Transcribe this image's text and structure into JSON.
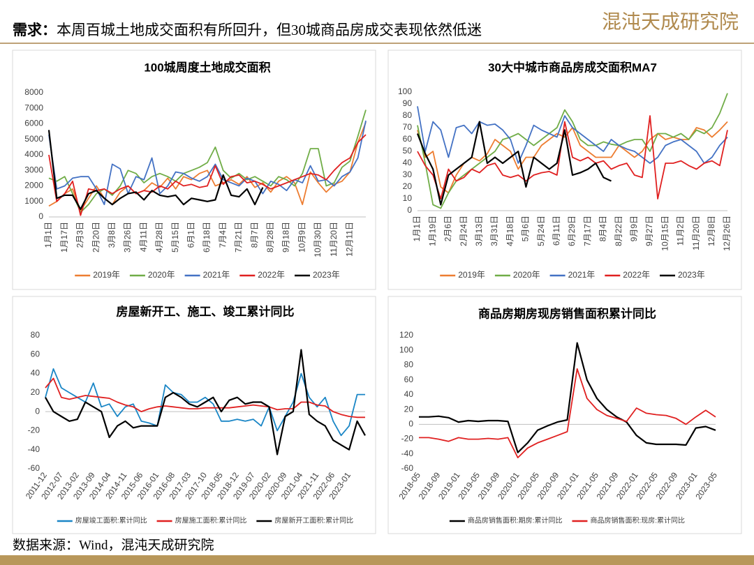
{
  "header": {
    "title_label": "需求：",
    "title": "本周百城土地成交面积有所回升，但30城商品房成交表现依然低迷",
    "logo": "混沌天成研究院"
  },
  "footer": {
    "source": "数据来源：Wind，混沌天成研究院"
  },
  "chart_data": [
    {
      "type": "line",
      "title": "100城周度土地成交面积",
      "legend": "bottom",
      "grid": false,
      "categories": [
        "1月1日",
        null,
        "1月17日",
        null,
        "2月3日",
        null,
        "2月20日",
        null,
        "3月8日",
        null,
        "3月26日",
        null,
        "4月11日",
        null,
        "4月28日",
        null,
        "5月15日",
        null,
        "6月1日",
        null,
        "6月18日",
        null,
        "7月4日",
        null,
        "7月21日",
        null,
        "8月7日",
        null,
        "8月28日",
        null,
        "9月18日",
        null,
        "10月9日",
        null,
        "10月30日",
        null,
        "11月20日",
        null,
        "12月11日",
        null,
        null
      ],
      "ylim": [
        0,
        8000
      ],
      "yticks": [
        0,
        1000,
        2000,
        3000,
        4000,
        5000,
        6000,
        7000,
        8000
      ],
      "series": [
        {
          "name": "2019年",
          "color": "#ED7D31",
          "values": [
            700,
            1000,
            1500,
            1800,
            400,
            1200,
            2000,
            1200,
            800,
            1600,
            2000,
            1500,
            1700,
            2200,
            1900,
            2500,
            1800,
            2600,
            2400,
            2800,
            3000,
            2000,
            2200,
            2400,
            2100,
            2600,
            1900,
            2200,
            1600,
            2300,
            2600,
            2200,
            800,
            2900,
            2200,
            1600,
            2100,
            2300,
            2900,
            4800,
            6100
          ]
        },
        {
          "name": "2020年",
          "color": "#70AD47",
          "values": [
            2500,
            2300,
            2600,
            1500,
            300,
            800,
            1500,
            1800,
            1400,
            2000,
            3000,
            2800,
            2200,
            2600,
            2800,
            2600,
            2300,
            2800,
            3000,
            3200,
            3500,
            4500,
            3000,
            2500,
            2800,
            2400,
            2600,
            2300,
            2000,
            2600,
            2400,
            2000,
            2800,
            4400,
            4400,
            2000,
            2200,
            3200,
            3600,
            5200,
            6900
          ]
        },
        {
          "name": "2021年",
          "color": "#4472C4",
          "values": [
            5300,
            1800,
            2000,
            2500,
            2600,
            2600,
            1800,
            800,
            3400,
            3100,
            1500,
            2600,
            2400,
            3800,
            1500,
            2000,
            2900,
            2800,
            2500,
            2300,
            2600,
            3400,
            2400,
            2200,
            2000,
            2500,
            2300,
            1500,
            2300,
            2100,
            1700,
            2400,
            2200,
            3300,
            2300,
            2400,
            2000,
            2600,
            2900,
            3800,
            6200
          ]
        },
        {
          "name": "2022年",
          "color": "#E02020",
          "values": [
            4000,
            1000,
            1500,
            2300,
            100,
            1800,
            1700,
            1800,
            1500,
            1800,
            2000,
            1500,
            1700,
            1600,
            2000,
            1800,
            2300,
            2000,
            2100,
            1900,
            2000,
            3300,
            2100,
            2600,
            2700,
            2200,
            2300,
            2100,
            1800,
            2000,
            2200,
            2400,
            2600,
            2800,
            2700,
            2400,
            3000,
            3500,
            3800,
            4800,
            5300
          ]
        },
        {
          "name": "2023年",
          "color": "#000000",
          "values": [
            5600,
            1200,
            1400,
            1400,
            500,
            1500,
            1700,
            1200,
            800,
            1200,
            1500,
            1600,
            1100,
            1700,
            1400,
            1300,
            1400,
            800,
            1200,
            1100,
            1000,
            1100,
            2700,
            1400,
            1300,
            1800,
            800,
            1900,
            null,
            null,
            null,
            null,
            null,
            null,
            null,
            null,
            null,
            null,
            null,
            null,
            null
          ]
        }
      ]
    },
    {
      "type": "line",
      "title": "30大中城市商品房成交面积MA7",
      "legend": "bottom",
      "grid": false,
      "categories": [
        "1月1日",
        null,
        "1月19日",
        null,
        "2月6日",
        null,
        "2月24日",
        null,
        "3月13日",
        null,
        "3月31日",
        null,
        "4月18日",
        null,
        "5月6日",
        null,
        "5月24日",
        null,
        "6月11日",
        null,
        "6月29日",
        null,
        "7月17日",
        null,
        "8月4日",
        null,
        "8月22日",
        null,
        "9月9日",
        null,
        "9月27日",
        null,
        "10月15日",
        null,
        "11月2日",
        null,
        "11月20日",
        null,
        "12月8日",
        null,
        "12月26日"
      ],
      "ylim": [
        0,
        100
      ],
      "yticks": [
        0,
        10,
        20,
        30,
        40,
        50,
        60,
        70,
        80,
        90,
        100
      ],
      "series": [
        {
          "name": "2019年",
          "color": "#ED7D31",
          "values": [
            68,
            45,
            50,
            20,
            15,
            30,
            40,
            45,
            42,
            48,
            60,
            55,
            50,
            35,
            45,
            45,
            55,
            60,
            65,
            62,
            70,
            55,
            50,
            45,
            45,
            45,
            55,
            50,
            45,
            50,
            60,
            65,
            60,
            62,
            60,
            60,
            70,
            68,
            62,
            68,
            75
          ]
        },
        {
          "name": "2020年",
          "color": "#70AD47",
          "values": [
            72,
            40,
            5,
            2,
            15,
            25,
            30,
            35,
            40,
            45,
            50,
            60,
            62,
            65,
            60,
            55,
            60,
            65,
            70,
            85,
            75,
            60,
            55,
            55,
            58,
            56,
            55,
            58,
            60,
            60,
            50,
            65,
            65,
            62,
            65,
            60,
            68,
            65,
            70,
            82,
            99
          ]
        },
        {
          "name": "2021年",
          "color": "#4472C4",
          "values": [
            88,
            50,
            75,
            68,
            45,
            70,
            72,
            65,
            75,
            72,
            73,
            68,
            60,
            40,
            55,
            72,
            68,
            65,
            62,
            80,
            70,
            65,
            60,
            55,
            50,
            60,
            55,
            52,
            50,
            45,
            40,
            45,
            55,
            58,
            60,
            55,
            50,
            40,
            45,
            55,
            62
          ]
        },
        {
          "name": "2022年",
          "color": "#E02020",
          "values": [
            50,
            38,
            30,
            10,
            35,
            25,
            28,
            35,
            32,
            38,
            40,
            30,
            28,
            30,
            25,
            30,
            32,
            33,
            30,
            75,
            45,
            42,
            45,
            40,
            42,
            35,
            38,
            40,
            30,
            28,
            80,
            10,
            40,
            40,
            42,
            38,
            35,
            40,
            42,
            38,
            68
          ]
        },
        {
          "name": "2023年",
          "color": "#000000",
          "values": [
            65,
            48,
            35,
            5,
            30,
            35,
            40,
            45,
            75,
            40,
            45,
            40,
            45,
            50,
            20,
            45,
            40,
            35,
            40,
            68,
            30,
            32,
            35,
            40,
            28,
            25,
            null,
            null,
            null,
            null,
            null,
            null,
            null,
            null,
            null,
            null,
            null,
            null,
            null,
            null,
            null
          ]
        }
      ]
    },
    {
      "type": "line",
      "title": "房屋新开工、施工、竣工累计同比",
      "legend": "bottom",
      "grid": false,
      "categories": [
        "2011-12",
        null,
        "2012-07",
        null,
        "2013-02",
        null,
        "2013-09",
        null,
        "2014-04",
        null,
        "2014-11",
        null,
        "2015-06",
        null,
        "2016-01",
        null,
        "2016-08",
        null,
        "2017-03",
        null,
        "2017-10",
        null,
        "2018-05",
        null,
        "2018-12",
        null,
        "2019-07",
        null,
        "2020-02",
        null,
        "2020-09",
        null,
        "2021-04",
        null,
        "2021-11",
        null,
        "2022-06",
        null,
        "2023-01",
        null,
        null
      ],
      "ylim": [
        -60,
        80
      ],
      "yticks": [
        -60,
        -40,
        -20,
        0,
        20,
        40,
        60,
        80
      ],
      "series": [
        {
          "name": "房屋竣工面积:累计同比",
          "color": "#1A86C6",
          "values": [
            15,
            45,
            25,
            20,
            15,
            10,
            30,
            5,
            8,
            -5,
            5,
            8,
            -10,
            -12,
            -15,
            28,
            20,
            18,
            10,
            10,
            15,
            8,
            -10,
            -10,
            -8,
            -10,
            -8,
            -15,
            5,
            -20,
            -5,
            10,
            40,
            15,
            5,
            15,
            -10,
            -25,
            -15,
            18,
            18
          ]
        },
        {
          "name": "房屋施工面积:累计同比",
          "color": "#E02020",
          "values": [
            25,
            35,
            15,
            13,
            15,
            17,
            16,
            15,
            14,
            10,
            7,
            5,
            0,
            3,
            5,
            6,
            5,
            4,
            3,
            3,
            4,
            4,
            4,
            4,
            5,
            6,
            7,
            6,
            5,
            2,
            3,
            3,
            10,
            10,
            7,
            6,
            0,
            -3,
            -5,
            -6,
            -6
          ]
        },
        {
          "name": "房屋新开工面积:累计同比",
          "color": "#000000",
          "values": [
            15,
            0,
            -5,
            -10,
            -8,
            10,
            5,
            0,
            -27,
            -15,
            -10,
            -17,
            -15,
            -15,
            -15,
            15,
            20,
            15,
            8,
            5,
            10,
            15,
            0,
            12,
            15,
            8,
            10,
            10,
            5,
            -45,
            -5,
            0,
            65,
            -3,
            -10,
            -15,
            -30,
            -35,
            -40,
            -10,
            -25
          ]
        }
      ]
    },
    {
      "type": "line",
      "title": "商品房期房现房销售面积累计同比",
      "legend": "bottom",
      "grid": false,
      "categories": [
        "2018-05",
        null,
        "2018-09",
        null,
        "2019-01",
        null,
        "2019-05",
        null,
        "2019-09",
        null,
        "2020-01",
        null,
        "2020-05",
        null,
        "2020-09",
        null,
        "2021-01",
        null,
        "2021-05",
        null,
        "2021-09",
        null,
        "2022-01",
        null,
        "2022-05",
        null,
        "2022-09",
        null,
        "2023-01",
        null,
        "2023-05"
      ],
      "ylim": [
        -60,
        120
      ],
      "yticks": [
        -60,
        -40,
        -20,
        0,
        20,
        40,
        60,
        80,
        100,
        120
      ],
      "series": [
        {
          "name": "商品房销售面积:期房:累计同比",
          "color": "#000000",
          "values": [
            10,
            10,
            11,
            9,
            3,
            5,
            4,
            5,
            5,
            4,
            -38,
            -25,
            -8,
            -2,
            3,
            6,
            110,
            60,
            35,
            20,
            10,
            3,
            -15,
            -25,
            -27,
            -27,
            -27,
            -28,
            -5,
            -3,
            -8
          ]
        },
        {
          "name": "商品房销售面积:现房:累计同比",
          "color": "#E02020",
          "values": [
            -18,
            -18,
            -20,
            -23,
            -18,
            -20,
            -20,
            -19,
            -20,
            -18,
            -45,
            -32,
            -25,
            -20,
            -15,
            -10,
            75,
            35,
            20,
            12,
            8,
            4,
            22,
            15,
            13,
            12,
            8,
            0,
            10,
            19,
            10
          ]
        }
      ]
    }
  ]
}
